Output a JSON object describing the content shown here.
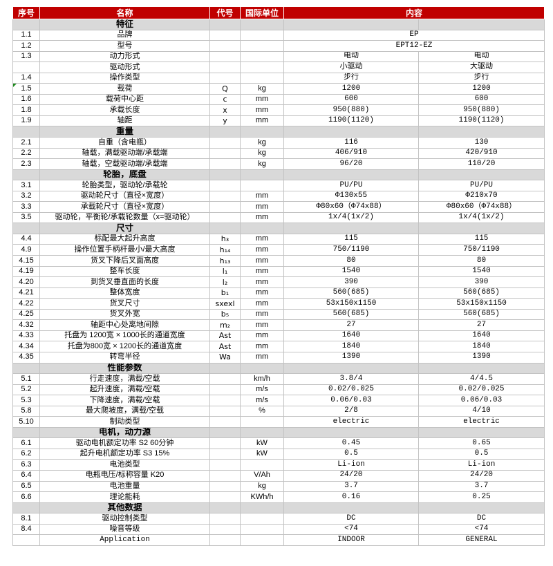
{
  "colors": {
    "header_bg": "#c00000",
    "header_text": "#ffffff",
    "section_bg": "#d9d9d9",
    "grid_border": "#c2c2c2",
    "flag_green": "#1e8a1e"
  },
  "columns": {
    "no": "序号",
    "name": "名称",
    "code": "代号",
    "unit": "国际单位",
    "content": "内容"
  },
  "rows": [
    {
      "type": "section",
      "label": "特征"
    },
    {
      "type": "data",
      "no": "1.1",
      "name": "品牌",
      "code": "",
      "unit": "",
      "merged": true,
      "value": "EP"
    },
    {
      "type": "data",
      "no": "1.2",
      "name": "型号",
      "code": "",
      "unit": "",
      "merged": true,
      "value": "EPT12-EZ"
    },
    {
      "type": "data",
      "no": "1.3",
      "name": "动力形式",
      "code": "",
      "unit": "",
      "v1": "电动",
      "v2": "电动"
    },
    {
      "type": "data",
      "no": "",
      "name": "驱动形式",
      "code": "",
      "unit": "",
      "v1": "小驱动",
      "v2": "大驱动"
    },
    {
      "type": "data",
      "no": "1.4",
      "name": "操作类型",
      "code": "",
      "unit": "",
      "v1": "步行",
      "v2": "步行"
    },
    {
      "type": "data",
      "no": "1.5",
      "flag": true,
      "name": "载荷",
      "code": "Q",
      "unit": "kg",
      "v1": "1200",
      "v2": "1200"
    },
    {
      "type": "data",
      "no": "1.6",
      "name": "载荷中心距",
      "code": "c",
      "unit": "mm",
      "v1": "600",
      "v2": "600"
    },
    {
      "type": "data",
      "no": "1.8",
      "name": "承载长度",
      "code": "x",
      "unit": "mm",
      "v1": "950(880)",
      "v2": "950(880)"
    },
    {
      "type": "data",
      "no": "1.9",
      "name": "轴距",
      "code": "y",
      "unit": "mm",
      "v1": "1190(1120)",
      "v2": "1190(1120)"
    },
    {
      "type": "section",
      "label": "重量"
    },
    {
      "type": "data",
      "no": "2.1",
      "name": "自重（含电瓶）",
      "code": "",
      "unit": "kg",
      "v1": "116",
      "v2": "130"
    },
    {
      "type": "data",
      "no": "2.2",
      "name": "轴载，满载驱动端/承载端",
      "code": "",
      "unit": "kg",
      "v1": "406/910",
      "v2": "420/910"
    },
    {
      "type": "data",
      "no": "2.3",
      "name": "轴载，空载驱动端/承载端",
      "code": "",
      "unit": "kg",
      "v1": "96/20",
      "v2": "110/20"
    },
    {
      "type": "section",
      "label": "轮胎，底盘"
    },
    {
      "type": "data",
      "no": "3.1",
      "name": "轮胎类型，驱动轮/承载轮",
      "code": "",
      "unit": "",
      "v1": "PU/PU",
      "v2": "PU/PU"
    },
    {
      "type": "data",
      "no": "3.2",
      "name": "驱动轮尺寸（直径×宽度）",
      "code": "",
      "unit": "mm",
      "v1": "Φ130x55",
      "v2": "Φ210x70"
    },
    {
      "type": "data",
      "no": "3.3",
      "name": "承载轮尺寸（直径×宽度）",
      "code": "",
      "unit": "mm",
      "v1": "Φ80x60（Φ74x88）",
      "v2": "Φ80x60（Φ74x88）"
    },
    {
      "type": "data",
      "no": "3.5",
      "name": "驱动轮，平衡轮/承载轮数量（x=驱动轮）",
      "code": "",
      "unit": "mm",
      "v1": "1x/4(1x/2)",
      "v2": "1x/4(1x/2)"
    },
    {
      "type": "section",
      "label": "尺寸"
    },
    {
      "type": "data",
      "no": "4.4",
      "name": "标配最大起升高度",
      "code": "h₃",
      "unit": "mm",
      "v1": "115",
      "v2": "115"
    },
    {
      "type": "data",
      "no": "4.9",
      "name": "操作位置手柄杆最小/最大高度",
      "code": "h₁₄",
      "unit": "mm",
      "v1": "750/1190",
      "v2": "750/1190"
    },
    {
      "type": "data",
      "no": "4.15",
      "name": "货叉下降后叉面高度",
      "code": "h₁₃",
      "unit": "mm",
      "v1": "80",
      "v2": "80"
    },
    {
      "type": "data",
      "no": "4.19",
      "name": "整车长度",
      "code": "l₁",
      "unit": "mm",
      "v1": "1540",
      "v2": "1540"
    },
    {
      "type": "data",
      "no": "4.20",
      "name": "到货叉垂直面的长度",
      "code": "l₂",
      "unit": "mm",
      "v1": "390",
      "v2": "390"
    },
    {
      "type": "data",
      "no": "4.21",
      "name": "整体宽度",
      "code": "b₁",
      "unit": "mm",
      "v1": "560(685)",
      "v2": "560(685)"
    },
    {
      "type": "data",
      "no": "4.22",
      "name": "货叉尺寸",
      "code": "sxexl",
      "unit": "mm",
      "v1": "53x150x1150",
      "v2": "53x150x1150"
    },
    {
      "type": "data",
      "no": "4.25",
      "name": "货叉外宽",
      "code": "b₅",
      "unit": "mm",
      "v1": "560(685)",
      "v2": "560(685)"
    },
    {
      "type": "data",
      "no": "4.32",
      "name": "轴距中心处离地间隙",
      "code": "m₂",
      "unit": "mm",
      "v1": "27",
      "v2": "27"
    },
    {
      "type": "data",
      "no": "4.33",
      "name": "托盘为 1200宽 × 1000长的通道宽度",
      "code": "Ast",
      "unit": "mm",
      "v1": "1640",
      "v2": "1640"
    },
    {
      "type": "data",
      "no": "4.34",
      "name": "托盘为800宽 × 1200长的通道宽度",
      "code": "Ast",
      "unit": "mm",
      "v1": "1840",
      "v2": "1840"
    },
    {
      "type": "data",
      "no": "4.35",
      "name": "转弯半径",
      "code": "Wa",
      "unit": "mm",
      "v1": "1390",
      "v2": "1390"
    },
    {
      "type": "section",
      "label": "性能参数"
    },
    {
      "type": "data",
      "no": "5.1",
      "name": "行走速度，满载/空载",
      "code": "",
      "unit": "km/h",
      "v1": "3.8/4",
      "v2": "4/4.5"
    },
    {
      "type": "data",
      "no": "5.2",
      "name": "起升速度，满载/空载",
      "code": "",
      "unit": "m/s",
      "v1": "0.02/0.025",
      "v2": "0.02/0.025"
    },
    {
      "type": "data",
      "no": "5.3",
      "name": "下降速度，满载/空载",
      "code": "",
      "unit": "m/s",
      "v1": "0.06/0.03",
      "v2": "0.06/0.03"
    },
    {
      "type": "data",
      "no": "5.8",
      "name": "最大爬坡度，满载/空载",
      "code": "",
      "unit": "%",
      "v1": "2/8",
      "v2": "4/10"
    },
    {
      "type": "data",
      "no": "5.10",
      "name": "制动类型",
      "code": "",
      "unit": "",
      "v1": "electric",
      "v2": "electric"
    },
    {
      "type": "section",
      "label": "电机，动力源"
    },
    {
      "type": "data",
      "no": "6.1",
      "name": "驱动电机额定功率 S2 60分钟",
      "code": "",
      "unit": "kW",
      "v1": "0.45",
      "v2": "0.65"
    },
    {
      "type": "data",
      "no": "6.2",
      "name": "起升电机额定功率 S3 15%",
      "code": "",
      "unit": "kW",
      "v1": "0.5",
      "v2": "0.5"
    },
    {
      "type": "data",
      "no": "6.3",
      "name": "电池类型",
      "code": "",
      "unit": "",
      "v1": "Li-ion",
      "v2": "Li-ion"
    },
    {
      "type": "data",
      "no": "6.4",
      "name": "电瓶电压/标称容量 K20",
      "code": "",
      "unit": "V/Ah",
      "v1": "24/20",
      "v2": "24/20"
    },
    {
      "type": "data",
      "no": "6.5",
      "name": "电池重量",
      "code": "",
      "unit": "kg",
      "v1": "3.7",
      "v2": "3.7"
    },
    {
      "type": "data",
      "no": "6.6",
      "name": "理论能耗",
      "code": "",
      "unit": "KWh/h",
      "v1": "0.16",
      "v2": "0.25"
    },
    {
      "type": "section",
      "label": "其他数据"
    },
    {
      "type": "data",
      "no": "8.1",
      "name": "驱动控制类型",
      "code": "",
      "unit": "",
      "v1": "DC",
      "v2": "DC"
    },
    {
      "type": "data",
      "no": "8.4",
      "name": "噪音等级",
      "code": "",
      "unit": "",
      "v1": "<74",
      "v2": "<74"
    },
    {
      "type": "data",
      "no": "",
      "name": "Application",
      "code": "",
      "unit": "",
      "v1": "INDOOR",
      "v2": "GENERAL"
    }
  ]
}
